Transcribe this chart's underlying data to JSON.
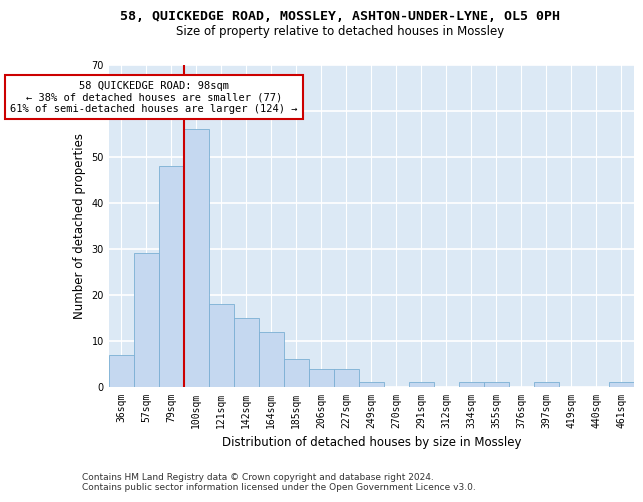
{
  "title_line1": "58, QUICKEDGE ROAD, MOSSLEY, ASHTON-UNDER-LYNE, OL5 0PH",
  "title_line2": "Size of property relative to detached houses in Mossley",
  "xlabel": "Distribution of detached houses by size in Mossley",
  "ylabel": "Number of detached properties",
  "bar_labels": [
    "36sqm",
    "57sqm",
    "79sqm",
    "100sqm",
    "121sqm",
    "142sqm",
    "164sqm",
    "185sqm",
    "206sqm",
    "227sqm",
    "249sqm",
    "270sqm",
    "291sqm",
    "312sqm",
    "334sqm",
    "355sqm",
    "376sqm",
    "397sqm",
    "419sqm",
    "440sqm",
    "461sqm"
  ],
  "bar_values": [
    7,
    29,
    48,
    56,
    18,
    15,
    12,
    6,
    4,
    4,
    1,
    0,
    1,
    0,
    1,
    1,
    0,
    1,
    0,
    0,
    1
  ],
  "bar_color": "#c5d8f0",
  "bar_edge_color": "#7bafd4",
  "vline_color": "#cc0000",
  "vline_x_index": 3,
  "annotation_text": "58 QUICKEDGE ROAD: 98sqm\n← 38% of detached houses are smaller (77)\n61% of semi-detached houses are larger (124) →",
  "annotation_box_color": "#ffffff",
  "annotation_box_edge_color": "#cc0000",
  "footer_line1": "Contains HM Land Registry data © Crown copyright and database right 2024.",
  "footer_line2": "Contains public sector information licensed under the Open Government Licence v3.0.",
  "ylim": [
    0,
    70
  ],
  "yticks": [
    0,
    10,
    20,
    30,
    40,
    50,
    60,
    70
  ],
  "plot_bg_color": "#dce9f5",
  "grid_color": "#ffffff",
  "title_fontsize": 9.5,
  "subtitle_fontsize": 8.5,
  "axis_label_fontsize": 8.5,
  "tick_fontsize": 7,
  "footer_fontsize": 6.5,
  "annotation_fontsize": 7.5
}
